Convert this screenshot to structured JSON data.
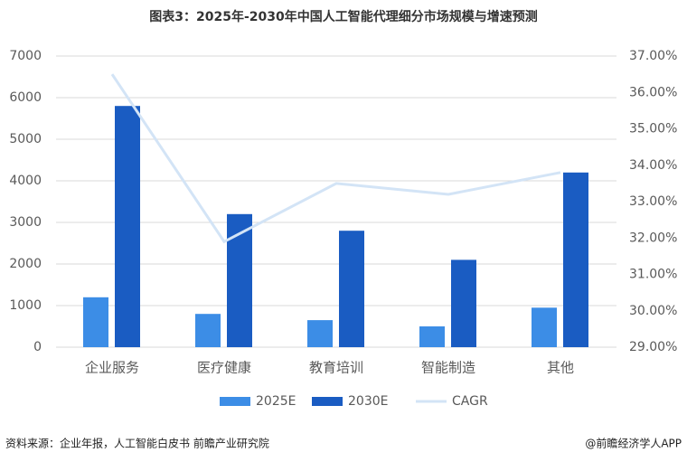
{
  "chart_data": {
    "type": "bar",
    "title": "图表3：2025年-2030年中国人工智能代理细分市场规模与增速预测",
    "categories": [
      "企业服务",
      "医疗健康",
      "教育培训",
      "智能制造",
      "其他"
    ],
    "series": [
      {
        "name": "2025E",
        "color": "#3c8de6",
        "values": [
          1200,
          800,
          650,
          500,
          950
        ]
      },
      {
        "name": "2030E",
        "color": "#1a5cc2",
        "values": [
          5800,
          3200,
          2800,
          2100,
          4200
        ]
      },
      {
        "name": "CAGR",
        "color": "#d3e4f6",
        "type": "line",
        "axis": "y2",
        "values": [
          36.5,
          31.9,
          33.5,
          33.2,
          33.8
        ]
      }
    ],
    "ylim": [
      0,
      7000
    ],
    "yticks": [
      0,
      1000,
      2000,
      3000,
      4000,
      5000,
      6000,
      7000
    ],
    "y2lim": [
      29,
      37
    ],
    "y2ticks": [
      {
        "value": 29,
        "label": "29.00%"
      },
      {
        "value": 30,
        "label": "30.00%"
      },
      {
        "value": 31,
        "label": "31.00%"
      },
      {
        "value": 32,
        "label": "32.00%"
      },
      {
        "value": 33,
        "label": "33.00%"
      },
      {
        "value": 34,
        "label": "34.00%"
      },
      {
        "value": 35,
        "label": "35.00%"
      },
      {
        "value": 36,
        "label": "36.00%"
      },
      {
        "value": 37,
        "label": "37.00%"
      }
    ],
    "grid": true,
    "legend": "bottom",
    "source": "资料来源：企业年报，人工智能白皮书 前瞻产业研究院",
    "credit": "@前瞻经济学人APP"
  }
}
